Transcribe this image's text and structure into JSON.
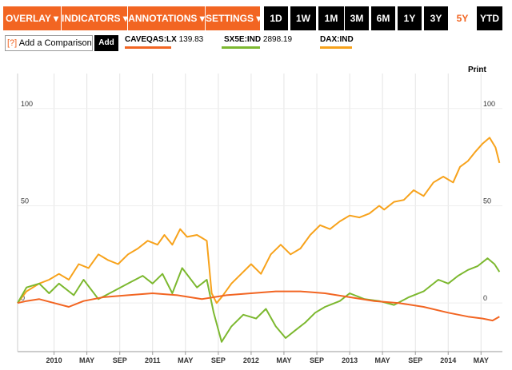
{
  "toolbar": {
    "menus": [
      {
        "label": "OVERLAY ▾"
      },
      {
        "label": "INDICATORS ▾"
      },
      {
        "label": "ANNOTATIONS ▾"
      },
      {
        "label": "SETTINGS ▾"
      }
    ],
    "ranges": [
      {
        "label": "1D"
      },
      {
        "label": "1W"
      },
      {
        "label": "1M"
      },
      {
        "label": "3M"
      },
      {
        "label": "6M"
      },
      {
        "label": "1Y"
      },
      {
        "label": "3Y"
      },
      {
        "label": "5Y",
        "active": true
      },
      {
        "label": "YTD"
      }
    ]
  },
  "compare": {
    "help": "[?]",
    "label": "Add a Comparison",
    "add_label": "Add"
  },
  "legend": [
    {
      "symbol": "CAVEQAS:LX",
      "value": "139.83",
      "color": "#f26522"
    },
    {
      "symbol": "SX5E:IND",
      "value": "2898.19",
      "color": "#7cb82f"
    },
    {
      "symbol": "DAX:IND",
      "value": "",
      "color": "#f7a21b"
    }
  ],
  "print_label": "Print",
  "chart_data": {
    "type": "line",
    "y_tick_labels": [
      "100",
      "50",
      "0"
    ],
    "x_tick_labels": [
      "2010",
      "MAY",
      "SEP",
      "2011",
      "MAY",
      "SEP",
      "2012",
      "MAY",
      "SEP",
      "2013",
      "MAY",
      "SEP",
      "2014",
      "MAY"
    ],
    "x_ticks_t": [
      2010.0,
      2010.333,
      2010.667,
      2011.0,
      2011.333,
      2011.667,
      2012.0,
      2012.333,
      2012.667,
      2013.0,
      2013.333,
      2013.667,
      2014.0,
      2014.333
    ],
    "xlim": [
      2009.63,
      2014.55
    ],
    "ylim": [
      -25,
      118
    ],
    "grid": true,
    "series": [
      {
        "name": "CAVEQAS:LX",
        "color": "#f26522",
        "t": [
          2009.63,
          2009.72,
          2009.85,
          2010.0,
          2010.15,
          2010.3,
          2010.5,
          2010.75,
          2011.0,
          2011.25,
          2011.5,
          2011.75,
          2012.0,
          2012.25,
          2012.5,
          2012.75,
          2013.0,
          2013.25,
          2013.5,
          2013.75,
          2014.0,
          2014.2,
          2014.35,
          2014.45,
          2014.52
        ],
        "values": [
          0,
          1,
          2,
          0,
          -2,
          1,
          3,
          4,
          5,
          4,
          2,
          4,
          5,
          6,
          6,
          5,
          3,
          1,
          0,
          -2,
          -5,
          -7,
          -8,
          -9,
          -7
        ]
      },
      {
        "name": "SX5E:IND",
        "color": "#7cb82f",
        "t": [
          2009.63,
          2009.72,
          2009.85,
          2009.95,
          2010.05,
          2010.2,
          2010.3,
          2010.45,
          2010.6,
          2010.75,
          2010.9,
          2011.0,
          2011.1,
          2011.2,
          2011.3,
          2011.45,
          2011.55,
          2011.62,
          2011.7,
          2011.8,
          2011.92,
          2012.05,
          2012.15,
          2012.25,
          2012.35,
          2012.45,
          2012.55,
          2012.65,
          2012.75,
          2012.9,
          2013.0,
          2013.15,
          2013.3,
          2013.45,
          2013.6,
          2013.75,
          2013.9,
          2014.0,
          2014.1,
          2014.2,
          2014.3,
          2014.4,
          2014.47,
          2014.52
        ],
        "values": [
          0,
          8,
          10,
          5,
          10,
          4,
          12,
          2,
          6,
          10,
          14,
          10,
          15,
          5,
          18,
          8,
          12,
          -5,
          -20,
          -12,
          -6,
          -8,
          -3,
          -12,
          -18,
          -14,
          -10,
          -5,
          -2,
          1,
          5,
          2,
          1,
          -1,
          3,
          6,
          12,
          10,
          14,
          17,
          19,
          23,
          20,
          16
        ]
      },
      {
        "name": "DAX:IND",
        "color": "#f7a21b",
        "t": [
          2009.63,
          2009.72,
          2009.85,
          2009.95,
          2010.05,
          2010.15,
          2010.25,
          2010.35,
          2010.45,
          2010.55,
          2010.65,
          2010.75,
          2010.85,
          2010.95,
          2011.05,
          2011.12,
          2011.2,
          2011.28,
          2011.35,
          2011.45,
          2011.55,
          2011.6,
          2011.65,
          2011.7,
          2011.8,
          2011.9,
          2012.0,
          2012.1,
          2012.2,
          2012.3,
          2012.4,
          2012.5,
          2012.6,
          2012.7,
          2012.8,
          2012.9,
          2013.0,
          2013.1,
          2013.2,
          2013.3,
          2013.35,
          2013.45,
          2013.55,
          2013.65,
          2013.75,
          2013.85,
          2013.95,
          2014.05,
          2014.12,
          2014.2,
          2014.28,
          2014.35,
          2014.42,
          2014.48,
          2014.52
        ],
        "values": [
          0,
          6,
          10,
          12,
          15,
          12,
          20,
          18,
          25,
          22,
          20,
          25,
          28,
          32,
          30,
          35,
          30,
          38,
          34,
          35,
          32,
          5,
          0,
          3,
          10,
          15,
          20,
          15,
          25,
          30,
          25,
          28,
          35,
          40,
          38,
          42,
          45,
          44,
          46,
          50,
          48,
          52,
          53,
          58,
          55,
          62,
          65,
          62,
          70,
          73,
          78,
          82,
          85,
          80,
          72
        ]
      }
    ]
  }
}
